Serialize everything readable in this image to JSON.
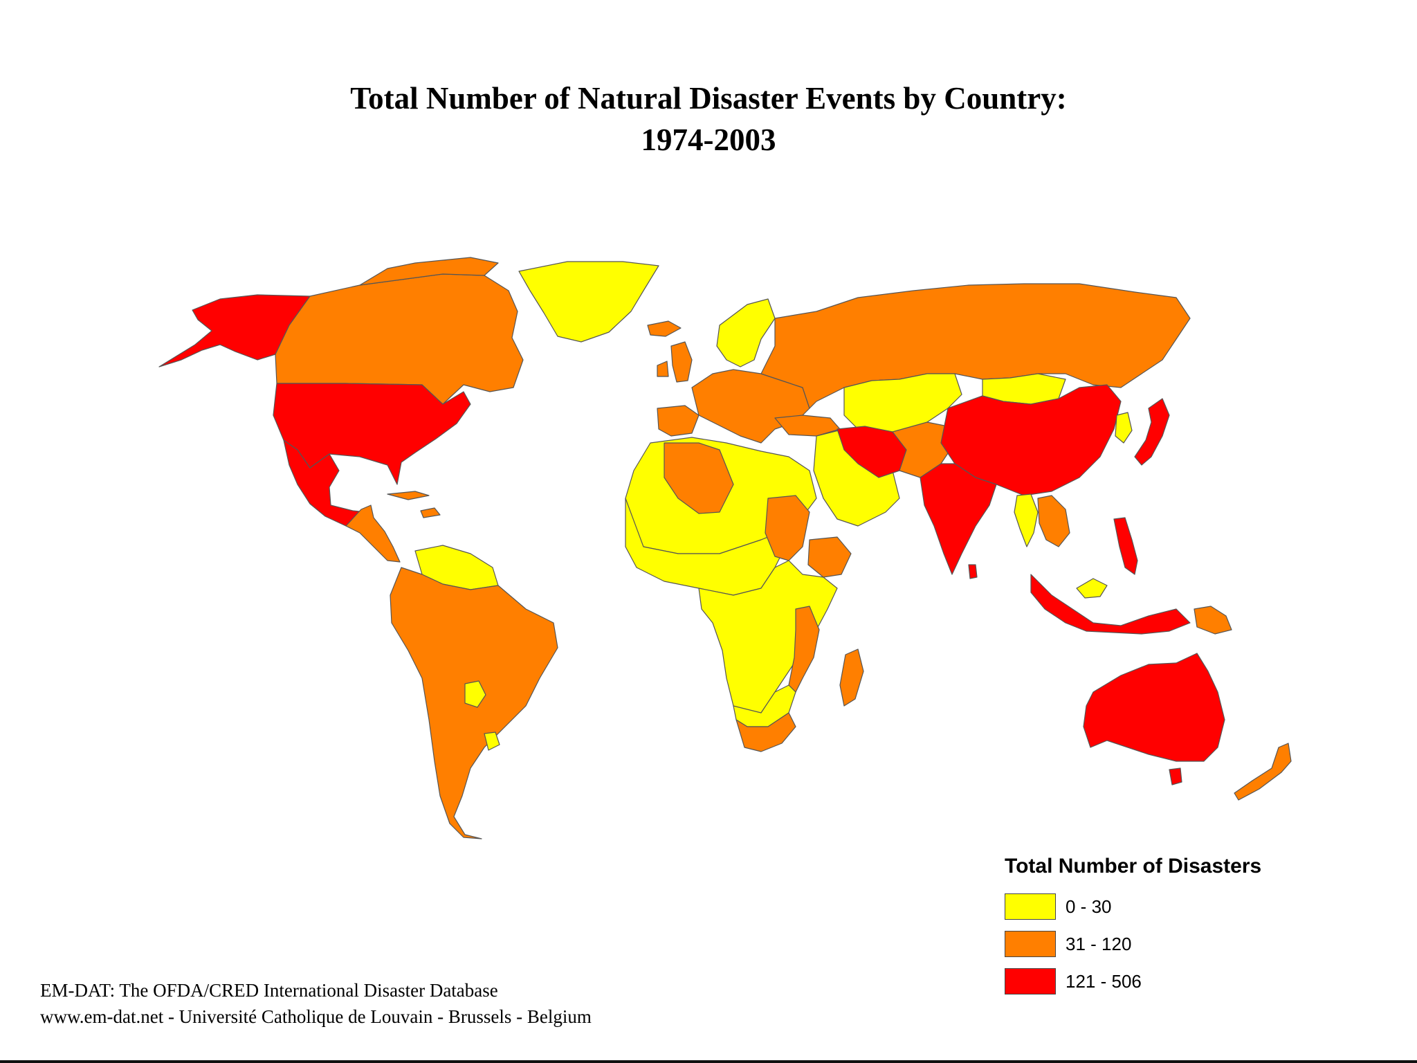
{
  "title": {
    "line1": "Total Number of Natural Disaster Events by Country:",
    "line2": "1974-2003"
  },
  "legend": {
    "title": "Total Number of Disasters",
    "items": [
      {
        "label": "0 - 30",
        "color": "#ffff00"
      },
      {
        "label": "31 - 120",
        "color": "#ff7f00"
      },
      {
        "label": "121 - 506",
        "color": "#ff0000"
      }
    ]
  },
  "source": {
    "line1": "EM-DAT: The OFDA/CRED International Disaster Database",
    "line2": "www.em-dat.net - Université Catholique de Louvain - Brussels - Belgium"
  },
  "map": {
    "classes": {
      "low": "#ffff00",
      "mid": "#ff7f00",
      "high": "#ff0000"
    },
    "regions": [
      {
        "name": "alaska",
        "class": "high"
      },
      {
        "name": "canada",
        "class": "mid"
      },
      {
        "name": "greenland",
        "class": "low"
      },
      {
        "name": "united-states",
        "class": "high"
      },
      {
        "name": "mexico",
        "class": "high"
      },
      {
        "name": "central-america",
        "class": "mid"
      },
      {
        "name": "caribbean",
        "class": "mid"
      },
      {
        "name": "guianas-venezuela",
        "class": "low"
      },
      {
        "name": "south-america",
        "class": "mid"
      },
      {
        "name": "paraguay",
        "class": "low"
      },
      {
        "name": "uruguay",
        "class": "low"
      },
      {
        "name": "iceland",
        "class": "mid"
      },
      {
        "name": "british-isles",
        "class": "mid"
      },
      {
        "name": "scandinavia",
        "class": "low"
      },
      {
        "name": "europe",
        "class": "mid"
      },
      {
        "name": "iberia",
        "class": "mid"
      },
      {
        "name": "russia",
        "class": "mid"
      },
      {
        "name": "kazakhstan-central-asia",
        "class": "low"
      },
      {
        "name": "mongolia",
        "class": "low"
      },
      {
        "name": "turkey",
        "class": "mid"
      },
      {
        "name": "north-africa-west",
        "class": "low"
      },
      {
        "name": "algeria",
        "class": "mid"
      },
      {
        "name": "sahel-west-africa",
        "class": "low"
      },
      {
        "name": "arabia",
        "class": "low"
      },
      {
        "name": "iran",
        "class": "high"
      },
      {
        "name": "afghanistan-pakistan",
        "class": "mid"
      },
      {
        "name": "china",
        "class": "high"
      },
      {
        "name": "india",
        "class": "high"
      },
      {
        "name": "southeast-asia",
        "class": "mid"
      },
      {
        "name": "myanmar-thailand",
        "class": "low"
      },
      {
        "name": "japan",
        "class": "high"
      },
      {
        "name": "korea",
        "class": "low"
      },
      {
        "name": "sudan",
        "class": "mid"
      },
      {
        "name": "ethiopia",
        "class": "mid"
      },
      {
        "name": "central-africa",
        "class": "low"
      },
      {
        "name": "mozambique-malawi",
        "class": "mid"
      },
      {
        "name": "southern-africa",
        "class": "low"
      },
      {
        "name": "south-africa",
        "class": "mid"
      },
      {
        "name": "madagascar",
        "class": "mid"
      },
      {
        "name": "philippines",
        "class": "high"
      },
      {
        "name": "indonesia",
        "class": "high"
      },
      {
        "name": "malaysia",
        "class": "low"
      },
      {
        "name": "papua-new-guinea",
        "class": "mid"
      },
      {
        "name": "australia",
        "class": "high"
      },
      {
        "name": "tasmania",
        "class": "high"
      },
      {
        "name": "new-zealand",
        "class": "mid"
      },
      {
        "name": "sri-lanka",
        "class": "high"
      }
    ]
  }
}
